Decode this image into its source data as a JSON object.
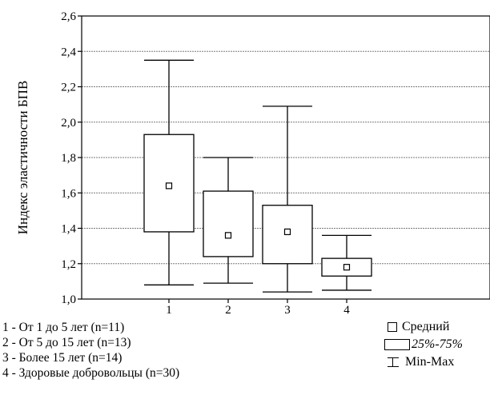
{
  "chart_data": {
    "type": "box",
    "ylabel": "Индекс эластичности БПВ",
    "ylim": [
      1.0,
      2.6
    ],
    "yticks": [
      "1,0",
      "1,2",
      "1,4",
      "1,6",
      "1,8",
      "2,0",
      "2,2",
      "2,4",
      "2,6"
    ],
    "ytick_values": [
      1.0,
      1.2,
      1.4,
      1.6,
      1.8,
      2.0,
      2.2,
      2.4,
      2.6
    ],
    "categories": [
      "1",
      "2",
      "3",
      "4"
    ],
    "grid": true,
    "series": [
      {
        "category": "1",
        "min": 1.08,
        "q1": 1.38,
        "mean": 1.64,
        "q3": 1.93,
        "max": 2.35
      },
      {
        "category": "2",
        "min": 1.09,
        "q1": 1.24,
        "mean": 1.36,
        "q3": 1.61,
        "max": 1.8
      },
      {
        "category": "3",
        "min": 1.04,
        "q1": 1.2,
        "mean": 1.38,
        "q3": 1.53,
        "max": 2.09
      },
      {
        "category": "4",
        "min": 1.05,
        "q1": 1.13,
        "mean": 1.18,
        "q3": 1.23,
        "max": 1.36
      }
    ],
    "legend": {
      "placement": "bottom-right",
      "mean": "Средний",
      "box": "25%-75%",
      "range": "Min-Max"
    }
  },
  "groups": [
    "1 - От 1 до 5 лет (n=11)",
    "2 - От 5 до 15 лет (n=13)",
    "3 - Более 15 лет (n=14)",
    "4 - Здоровые добровольцы (n=30)"
  ]
}
